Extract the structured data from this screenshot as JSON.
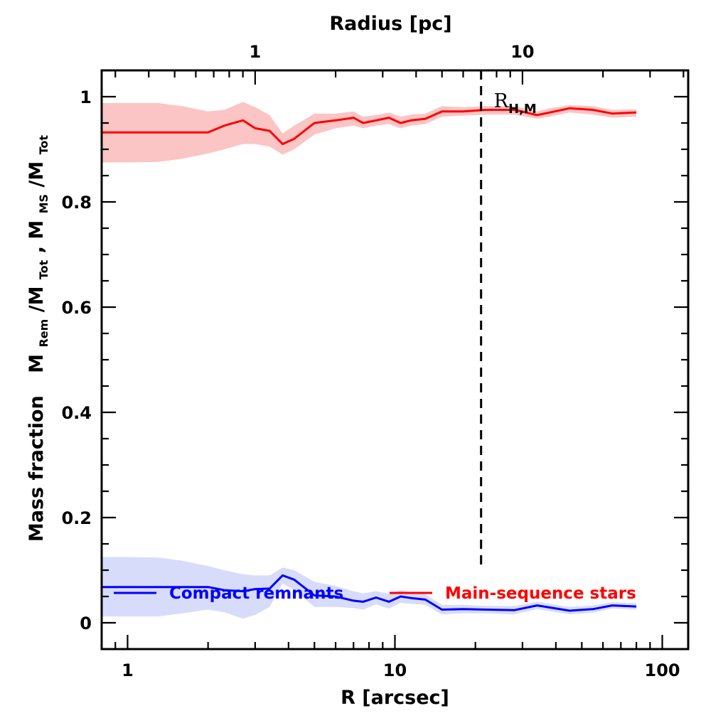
{
  "chart_data": {
    "type": "line",
    "title": "",
    "xlabel": "R [arcsec]",
    "ylabel": "Mass fraction   M_Rem/M_Tot,  M_MS/M_Tot",
    "ylabel_parts": {
      "prefix": "Mass fraction",
      "rem_main": "M",
      "rem_sub": "Rem",
      "tot_main": "/M",
      "tot_sub": "Tot",
      "sep": ",  M",
      "ms_sub": "MS",
      "tot2_main": "/M",
      "tot2_sub": "Tot"
    },
    "top_axis_label": "Radius [pc]",
    "x_scale": "log",
    "xlim": [
      0.8,
      125
    ],
    "ylim": [
      -0.05,
      1.05
    ],
    "x_ticks": [
      1,
      10,
      100
    ],
    "x_tick_labels": [
      "1",
      "10",
      "100"
    ],
    "y_ticks": [
      0,
      0.2,
      0.4,
      0.6,
      0.8,
      1
    ],
    "y_tick_labels": [
      "0",
      "0.2",
      "0.4",
      "0.6",
      "0.8",
      "1"
    ],
    "top_ticks": [
      1,
      10
    ],
    "top_tick_labels": [
      "1",
      "10"
    ],
    "top_tick_arcsec": [
      3.0,
      30.0
    ],
    "grid": false,
    "legend_position": "bottom",
    "annotation": {
      "label_main": "R",
      "label_sub": "H,M",
      "x": 21.0,
      "style": "dashed vertical line"
    },
    "series": [
      {
        "name": "Compact remnants",
        "color": "#0000ff",
        "band_color": "#d8dcfb",
        "x": [
          0.8,
          1.0,
          1.3,
          1.6,
          2.0,
          2.3,
          2.7,
          3.0,
          3.4,
          3.8,
          4.2,
          5.0,
          6.0,
          7.0,
          7.6,
          8.5,
          9.5,
          10.5,
          11.5,
          13.0,
          15.0,
          18.0,
          22.0,
          28.0,
          34.0,
          38.0,
          45.0,
          55.0,
          65.0,
          80.0
        ],
        "values": [
          0.068,
          0.068,
          0.068,
          0.068,
          0.068,
          0.062,
          0.06,
          0.064,
          0.065,
          0.09,
          0.082,
          0.052,
          0.05,
          0.042,
          0.04,
          0.048,
          0.04,
          0.05,
          0.047,
          0.044,
          0.025,
          0.026,
          0.025,
          0.024,
          0.033,
          0.029,
          0.023,
          0.026,
          0.033,
          0.031
        ],
        "upper": [
          0.125,
          0.125,
          0.124,
          0.118,
          0.108,
          0.1,
          0.092,
          0.09,
          0.09,
          0.105,
          0.1,
          0.078,
          0.07,
          0.06,
          0.056,
          0.06,
          0.055,
          0.062,
          0.058,
          0.054,
          0.034,
          0.034,
          0.032,
          0.032,
          0.04,
          0.036,
          0.03,
          0.033,
          0.039,
          0.037
        ],
        "lower": [
          0.012,
          0.012,
          0.012,
          0.018,
          0.025,
          0.02,
          0.008,
          0.015,
          0.03,
          0.075,
          0.062,
          0.03,
          0.03,
          0.028,
          0.025,
          0.035,
          0.027,
          0.038,
          0.036,
          0.034,
          0.016,
          0.018,
          0.018,
          0.016,
          0.026,
          0.022,
          0.016,
          0.019,
          0.027,
          0.025
        ]
      },
      {
        "name": "Main-sequence stars",
        "color": "#ff0000",
        "band_color": "#fbc5c5",
        "x": [
          0.8,
          1.0,
          1.3,
          1.6,
          2.0,
          2.3,
          2.7,
          3.0,
          3.4,
          3.8,
          4.2,
          5.0,
          6.0,
          7.0,
          7.6,
          8.5,
          9.5,
          10.5,
          11.5,
          13.0,
          15.0,
          18.0,
          22.0,
          28.0,
          34.0,
          38.0,
          45.0,
          55.0,
          65.0,
          80.0
        ],
        "values": [
          0.932,
          0.932,
          0.932,
          0.932,
          0.932,
          0.945,
          0.955,
          0.94,
          0.935,
          0.91,
          0.92,
          0.95,
          0.955,
          0.96,
          0.95,
          0.955,
          0.96,
          0.95,
          0.955,
          0.958,
          0.972,
          0.972,
          0.975,
          0.975,
          0.965,
          0.97,
          0.978,
          0.975,
          0.968,
          0.97
        ],
        "upper": [
          0.988,
          0.988,
          0.988,
          0.982,
          0.972,
          0.975,
          0.99,
          0.98,
          0.965,
          0.93,
          0.945,
          0.968,
          0.968,
          0.972,
          0.962,
          0.965,
          0.97,
          0.962,
          0.966,
          0.968,
          0.982,
          0.98,
          0.982,
          0.982,
          0.972,
          0.978,
          0.984,
          0.982,
          0.975,
          0.976
        ],
        "lower": [
          0.875,
          0.875,
          0.876,
          0.882,
          0.892,
          0.9,
          0.91,
          0.91,
          0.905,
          0.89,
          0.9,
          0.928,
          0.94,
          0.945,
          0.94,
          0.945,
          0.948,
          0.94,
          0.945,
          0.948,
          0.962,
          0.964,
          0.966,
          0.966,
          0.958,
          0.962,
          0.97,
          0.966,
          0.96,
          0.962
        ]
      }
    ]
  }
}
